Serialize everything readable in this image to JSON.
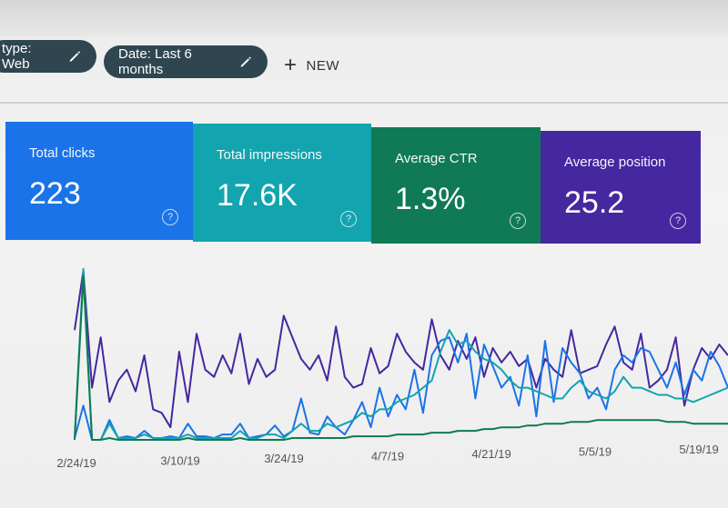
{
  "filters": {
    "type_chip": "type: Web",
    "date_chip": "Date: Last 6 months",
    "new_button": "NEW"
  },
  "metrics": [
    {
      "label": "Total clicks",
      "value": "223",
      "color": "#1a73e8"
    },
    {
      "label": "Total impressions",
      "value": "17.6K",
      "color": "#12a4af"
    },
    {
      "label": "Average CTR",
      "value": "1.3%",
      "color": "#0f7a55"
    },
    {
      "label": "Average position",
      "value": "25.2",
      "color": "#4527a0"
    }
  ],
  "help_glyph": "?",
  "chart_data": {
    "type": "line",
    "x_tick_labels": [
      "2/24/19",
      "3/10/19",
      "3/24/19",
      "4/7/19",
      "4/21/19",
      "5/5/19",
      "5/19/19"
    ],
    "series": [
      {
        "color": "#4527a0",
        "values": [
          62,
          95,
          30,
          58,
          22,
          34,
          40,
          28,
          48,
          18,
          16,
          8,
          50,
          22,
          60,
          40,
          36,
          48,
          38,
          60,
          32,
          46,
          36,
          40,
          70,
          58,
          46,
          40,
          48,
          34,
          64,
          36,
          30,
          32,
          52,
          38,
          42,
          60,
          50,
          44,
          40,
          68,
          48,
          40,
          56,
          46,
          58,
          36,
          52,
          44,
          50,
          42,
          46,
          30,
          46,
          40,
          36,
          62,
          38,
          40,
          42,
          54,
          64,
          44,
          40,
          60,
          30,
          34,
          40,
          58,
          20,
          40,
          52,
          46,
          54,
          48
        ]
      },
      {
        "color": "#1a73e8",
        "values": [
          2,
          20,
          1,
          1,
          12,
          2,
          3,
          2,
          6,
          2,
          2,
          3,
          2,
          10,
          3,
          3,
          2,
          4,
          4,
          10,
          2,
          3,
          4,
          9,
          3,
          6,
          24,
          5,
          4,
          14,
          8,
          4,
          12,
          22,
          8,
          30,
          14,
          26,
          18,
          40,
          16,
          48,
          56,
          58,
          44,
          60,
          24,
          54,
          42,
          30,
          36,
          20,
          48,
          14,
          56,
          22,
          52,
          44,
          38,
          24,
          30,
          18,
          40,
          48,
          44,
          52,
          50,
          40,
          30,
          44,
          26,
          40,
          34,
          50,
          42,
          30
        ]
      },
      {
        "color": "#12a4af",
        "values": [
          2,
          96,
          1,
          1,
          10,
          2,
          2,
          2,
          4,
          2,
          2,
          2,
          2,
          4,
          2,
          2,
          2,
          2,
          2,
          6,
          2,
          2,
          4,
          4,
          2,
          6,
          10,
          6,
          6,
          10,
          8,
          10,
          12,
          16,
          14,
          18,
          18,
          22,
          24,
          26,
          30,
          34,
          50,
          62,
          54,
          56,
          50,
          46,
          44,
          40,
          34,
          30,
          30,
          28,
          26,
          24,
          24,
          30,
          34,
          28,
          26,
          24,
          28,
          36,
          30,
          30,
          28,
          26,
          26,
          24,
          24,
          22,
          24,
          26,
          28,
          30
        ]
      },
      {
        "color": "#0f7a55",
        "values": [
          1,
          92,
          1,
          1,
          2,
          1,
          1,
          1,
          1,
          1,
          1,
          1,
          1,
          2,
          1,
          1,
          1,
          1,
          1,
          2,
          1,
          1,
          1,
          1,
          1,
          2,
          2,
          2,
          2,
          2,
          2,
          2,
          3,
          3,
          3,
          3,
          3,
          4,
          4,
          4,
          4,
          5,
          5,
          5,
          6,
          6,
          6,
          7,
          7,
          8,
          8,
          8,
          9,
          9,
          10,
          10,
          10,
          11,
          11,
          11,
          12,
          12,
          12,
          12,
          12,
          12,
          12,
          12,
          11,
          11,
          11,
          10,
          10,
          10,
          10,
          10
        ]
      }
    ]
  }
}
